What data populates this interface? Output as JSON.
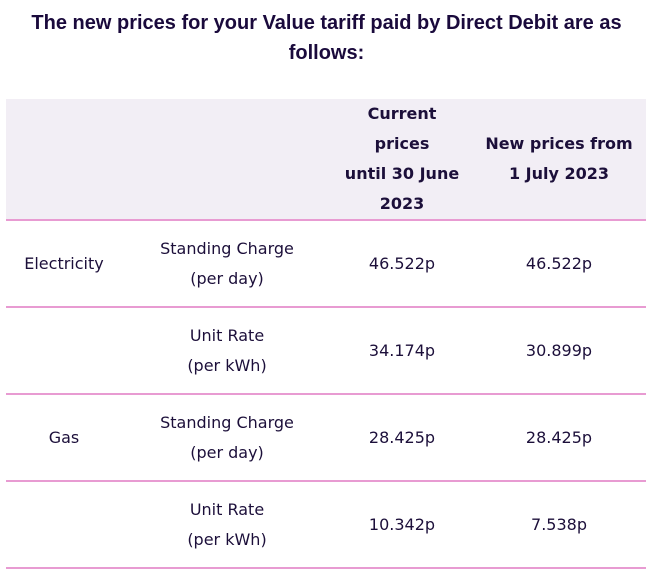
{
  "heading": {
    "line1": "The new prices for your Value tariff paid by Direct Debit are as",
    "line2": "follows:"
  },
  "table": {
    "headers": {
      "col1": "",
      "col2": "",
      "current": [
        "Current prices",
        "until 30 June",
        "2023"
      ],
      "new": [
        "New prices from",
        "1 July 2023"
      ]
    },
    "rows": [
      {
        "fuel": "Electricity",
        "charge": [
          "Standing Charge",
          "(per day)"
        ],
        "current": "46.522p",
        "new": "46.522p"
      },
      {
        "fuel": "",
        "charge": [
          "Unit Rate",
          "(per kWh)"
        ],
        "current": "34.174p",
        "new": "30.899p"
      },
      {
        "fuel": "Gas",
        "charge": [
          "Standing Charge",
          "(per day)"
        ],
        "current": "28.425p",
        "new": "28.425p"
      },
      {
        "fuel": "",
        "charge": [
          "Unit Rate",
          "(per kWh)"
        ],
        "current": "10.342p",
        "new": "7.538p"
      }
    ]
  },
  "colors": {
    "text": "#1c0f3a",
    "header_bg": "#f2eef5",
    "row_divider": "#e89bd2"
  }
}
